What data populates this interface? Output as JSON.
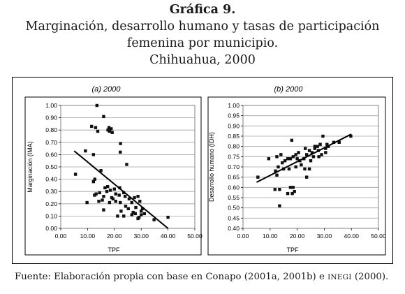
{
  "figure": {
    "heading": "Gráfica 9.",
    "title_line1": "Marginación, desarrollo humano y tasas de participación",
    "title_line2": "femenina por municipio.",
    "title_line3": "Chihuahua, 2000",
    "source_prefix": "Fuente:  Elaboración propia con base en Conapo (2001a, 2001b) e ",
    "source_inegi": "INEGI",
    "source_suffix": " (2000)."
  },
  "chart_data": [
    {
      "type": "scatter",
      "title": "(a) 2000",
      "xlabel": "TPF",
      "ylabel": "Marginación (IMA)",
      "xlim": [
        0,
        50
      ],
      "ylim": [
        0,
        1
      ],
      "xticks": [
        "0.00",
        "10.00",
        "20.00",
        "30.00",
        "40.00",
        "50.00"
      ],
      "yticks": [
        "0.00",
        "0.10",
        "0.20",
        "0.30",
        "0.40",
        "0.50",
        "0.60",
        "0.70",
        "0.80",
        "0.90",
        "1.00"
      ],
      "grid": "y",
      "marker_color": "#111111",
      "points": [
        [
          13.5,
          1.0
        ],
        [
          16.0,
          0.91
        ],
        [
          11.5,
          0.83
        ],
        [
          13.0,
          0.82
        ],
        [
          13.8,
          0.79
        ],
        [
          18.0,
          0.82
        ],
        [
          18.8,
          0.81
        ],
        [
          18.2,
          0.79
        ],
        [
          19.2,
          0.78
        ],
        [
          17.6,
          0.8
        ],
        [
          22.3,
          0.69
        ],
        [
          9.2,
          0.63
        ],
        [
          12.2,
          0.6
        ],
        [
          22.2,
          0.62
        ],
        [
          24.6,
          0.52
        ],
        [
          15.0,
          0.47
        ],
        [
          5.5,
          0.44
        ],
        [
          12.7,
          0.4
        ],
        [
          12.2,
          0.38
        ],
        [
          17.5,
          0.34
        ],
        [
          16.5,
          0.33
        ],
        [
          20.0,
          0.32
        ],
        [
          22.0,
          0.33
        ],
        [
          18.5,
          0.31
        ],
        [
          17.2,
          0.3
        ],
        [
          14.5,
          0.29
        ],
        [
          13.2,
          0.28
        ],
        [
          20.5,
          0.28
        ],
        [
          21.8,
          0.27
        ],
        [
          23.5,
          0.29
        ],
        [
          12.6,
          0.27
        ],
        [
          16.0,
          0.26
        ],
        [
          19.0,
          0.25
        ],
        [
          24.0,
          0.26
        ],
        [
          25.5,
          0.24
        ],
        [
          27.5,
          0.25
        ],
        [
          28.8,
          0.26
        ],
        [
          9.8,
          0.21
        ],
        [
          14.2,
          0.22
        ],
        [
          18.2,
          0.21
        ],
        [
          20.5,
          0.22
        ],
        [
          22.2,
          0.21
        ],
        [
          26.5,
          0.21
        ],
        [
          29.5,
          0.22
        ],
        [
          24.2,
          0.18
        ],
        [
          16.0,
          0.15
        ],
        [
          22.5,
          0.14
        ],
        [
          25.2,
          0.16
        ],
        [
          28.0,
          0.17
        ],
        [
          30.0,
          0.14
        ],
        [
          21.2,
          0.1
        ],
        [
          23.5,
          0.1
        ],
        [
          26.5,
          0.11
        ],
        [
          27.8,
          0.12
        ],
        [
          29.2,
          0.09
        ],
        [
          30.0,
          0.11
        ],
        [
          31.2,
          0.12
        ],
        [
          28.8,
          0.08
        ],
        [
          34.8,
          0.07
        ],
        [
          40.0,
          0.09
        ],
        [
          27.0,
          0.13
        ],
        [
          30.5,
          0.16
        ],
        [
          19.5,
          0.24
        ],
        [
          15.5,
          0.23
        ]
      ],
      "trendline": [
        [
          5.0,
          0.63
        ],
        [
          40.0,
          0.0
        ]
      ]
    },
    {
      "type": "scatter",
      "title": "(b) 2000",
      "xlabel": "TPF",
      "ylabel": "Desarrollo humano (IDH)",
      "xlim": [
        0,
        50
      ],
      "ylim": [
        0.4,
        1
      ],
      "xticks": [
        "0.00",
        "10.00",
        "20.00",
        "30.00",
        "40.00",
        "50.00"
      ],
      "yticks": [
        "0.40",
        "0.45",
        "0.50",
        "0.55",
        "0.60",
        "0.65",
        "0.70",
        "0.75",
        "0.80",
        "0.85",
        "0.90",
        "0.95",
        "1.00"
      ],
      "grid": "y",
      "marker_color": "#111111",
      "points": [
        [
          5.5,
          0.65
        ],
        [
          9.5,
          0.74
        ],
        [
          12.0,
          0.68
        ],
        [
          13.0,
          0.7
        ],
        [
          12.5,
          0.75
        ],
        [
          14.0,
          0.76
        ],
        [
          15.5,
          0.73
        ],
        [
          16.5,
          0.74
        ],
        [
          17.5,
          0.74
        ],
        [
          18.5,
          0.75
        ],
        [
          19.5,
          0.76
        ],
        [
          20.5,
          0.77
        ],
        [
          22.5,
          0.74
        ],
        [
          23.5,
          0.76
        ],
        [
          24.5,
          0.78
        ],
        [
          25.5,
          0.77
        ],
        [
          26.5,
          0.79
        ],
        [
          27.5,
          0.8
        ],
        [
          28.5,
          0.81
        ],
        [
          29.5,
          0.85
        ],
        [
          30.5,
          0.79
        ],
        [
          31.5,
          0.8
        ],
        [
          33.5,
          0.82
        ],
        [
          35.5,
          0.82
        ],
        [
          39.8,
          0.85
        ],
        [
          18.0,
          0.83
        ],
        [
          21.5,
          0.71
        ],
        [
          22.8,
          0.69
        ],
        [
          23.5,
          0.65
        ],
        [
          24.5,
          0.69
        ],
        [
          19.5,
          0.7
        ],
        [
          17.0,
          0.69
        ],
        [
          15.0,
          0.69
        ],
        [
          12.5,
          0.66
        ],
        [
          13.5,
          0.59
        ],
        [
          11.8,
          0.59
        ],
        [
          17.5,
          0.6
        ],
        [
          18.5,
          0.6
        ],
        [
          19.0,
          0.58
        ],
        [
          16.5,
          0.57
        ],
        [
          13.5,
          0.51
        ],
        [
          26.5,
          0.8
        ],
        [
          27.8,
          0.78
        ],
        [
          29.0,
          0.76
        ],
        [
          30.5,
          0.77
        ],
        [
          25.0,
          0.73
        ],
        [
          21.0,
          0.73
        ],
        [
          14.5,
          0.72
        ],
        [
          18.2,
          0.57
        ],
        [
          28.0,
          0.75
        ],
        [
          23.0,
          0.79
        ],
        [
          26.0,
          0.75
        ],
        [
          31.0,
          0.81
        ],
        [
          20.0,
          0.74
        ]
      ],
      "trendline": [
        [
          5.0,
          0.625
        ],
        [
          40.0,
          0.86
        ]
      ]
    }
  ]
}
